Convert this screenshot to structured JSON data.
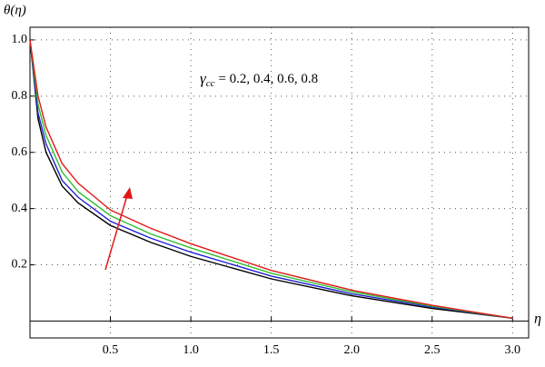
{
  "chart_data": {
    "type": "line",
    "y_label": "θ(η)",
    "x_label": "η",
    "annotation": {
      "symbol": "γ",
      "subscript": "cc",
      "text": "= 0.2, 0.4, 0.6, 0.8"
    },
    "x": [
      0,
      0.05,
      0.1,
      0.2,
      0.3,
      0.5,
      0.75,
      1,
      1.5,
      2,
      2.5,
      3
    ],
    "series": [
      {
        "color": "#000000",
        "values": [
          1,
          0.72,
          0.6,
          0.48,
          0.42,
          0.34,
          0.28,
          0.23,
          0.15,
          0.09,
          0.045,
          0.01
        ]
      },
      {
        "color": "#1f1fd6",
        "values": [
          1,
          0.74,
          0.63,
          0.5,
          0.44,
          0.355,
          0.295,
          0.245,
          0.16,
          0.097,
          0.05,
          0.01
        ]
      },
      {
        "color": "#2fbf2f",
        "values": [
          1,
          0.77,
          0.66,
          0.53,
          0.46,
          0.375,
          0.31,
          0.26,
          0.17,
          0.104,
          0.053,
          0.01
        ]
      },
      {
        "color": "#e01818",
        "values": [
          1,
          0.8,
          0.69,
          0.56,
          0.49,
          0.395,
          0.33,
          0.275,
          0.18,
          0.11,
          0.056,
          0.01
        ]
      }
    ],
    "xlim": [
      0,
      3.1
    ],
    "ylim": [
      -0.06,
      1.045
    ],
    "xticks": [
      0.5,
      {
        "value": 1,
        "label": "1.0"
      },
      1.5,
      {
        "value": 2,
        "label": "2.0"
      },
      2.5,
      {
        "value": 3,
        "label": "3.0"
      }
    ],
    "yticks": [
      0.2,
      0.4,
      0.6,
      0.8,
      {
        "value": 1,
        "label": "1.0"
      }
    ],
    "grid": true
  }
}
